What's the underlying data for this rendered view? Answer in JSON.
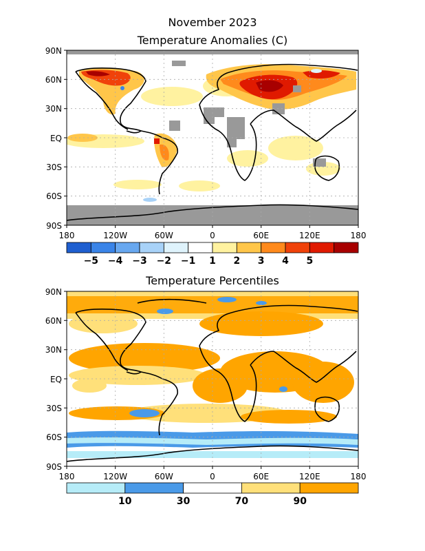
{
  "header": {
    "title": "November 2023",
    "map1_title": "Temperature Anomalies (C)",
    "map2_title": "Temperature Percentiles"
  },
  "lat_labels": [
    "90N",
    "60N",
    "30N",
    "EQ",
    "30S",
    "60S",
    "90S"
  ],
  "lon_labels": [
    "180",
    "120W",
    "60W",
    "0",
    "60E",
    "120E",
    "180"
  ],
  "anomaly_legend": {
    "colors": [
      "#1f5fd0",
      "#3a84e8",
      "#68a8f0",
      "#a8d2f8",
      "#dff3fc",
      "#ffffff",
      "#fff2a0",
      "#ffc64a",
      "#ff8a1c",
      "#f0420a",
      "#e01a00",
      "#a80000"
    ],
    "labels": [
      "−5",
      "−4",
      "−3",
      "−2",
      "−1",
      "1",
      "2",
      "3",
      "4",
      "5"
    ]
  },
  "percentile_legend": {
    "colors": [
      "#b6ecf8",
      "#4a9ae8",
      "#ffffff",
      "#ffe07a",
      "#ffa500"
    ],
    "labels": [
      "10",
      "30",
      "70",
      "90"
    ]
  },
  "palette": {
    "missing": "#999999",
    "coast": "#000000",
    "grid": "#aaaaaa"
  }
}
